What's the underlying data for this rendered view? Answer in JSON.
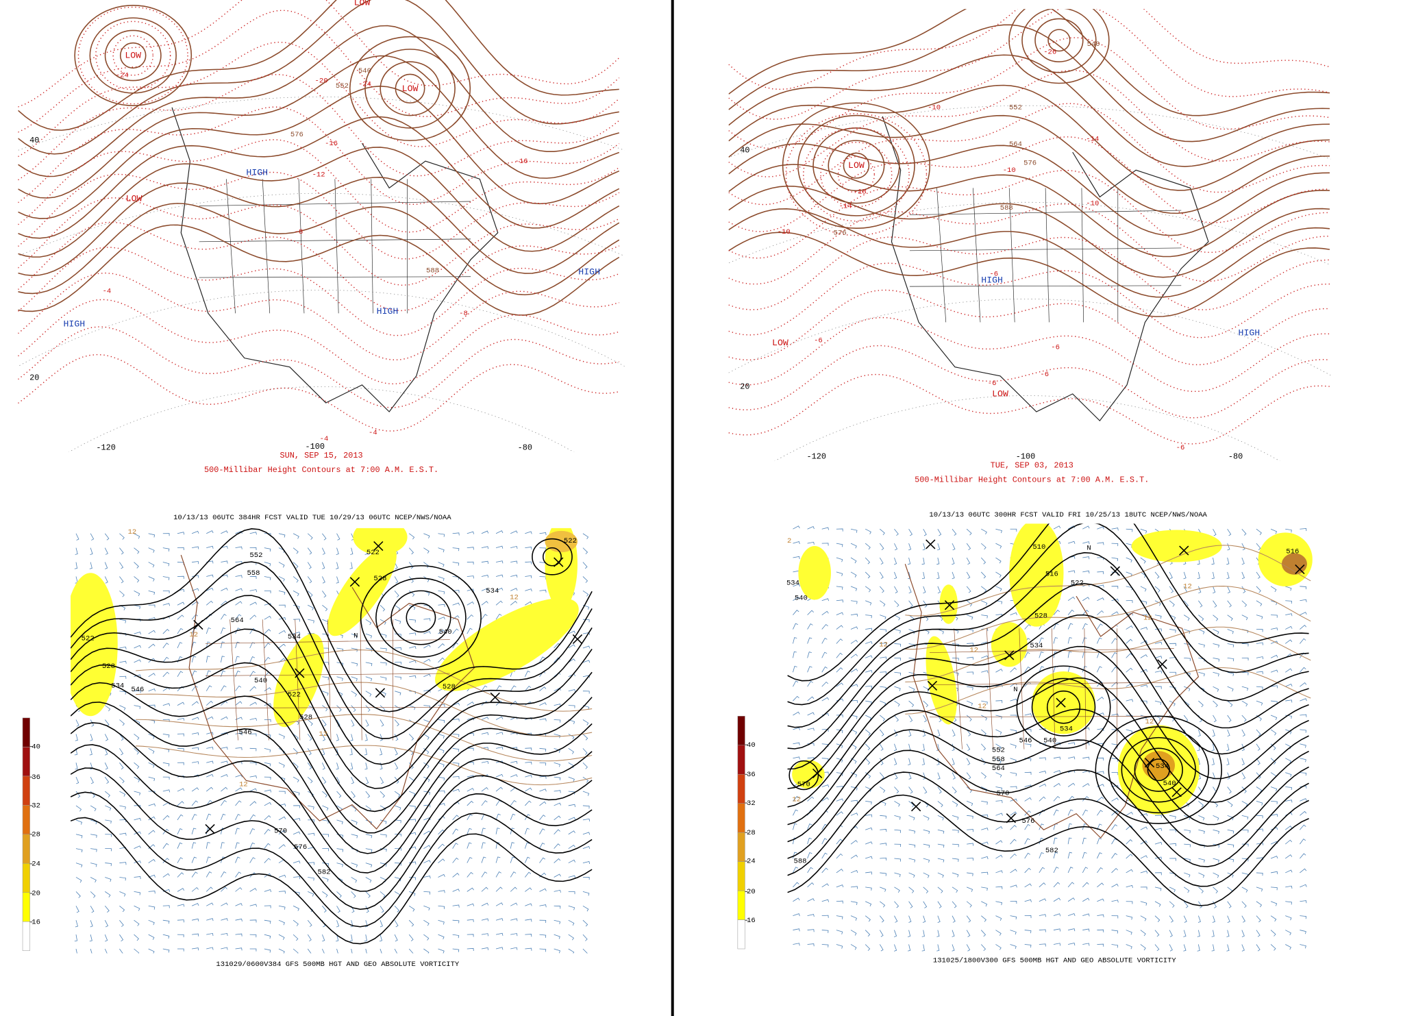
{
  "top_left": {
    "date": "SUN, SEP 15, 2013",
    "caption": "500-Millibar Height Contours at 7:00 A.M. E.S.T.",
    "lat_labels": [
      "40",
      "20"
    ],
    "lon_labels": [
      "-120",
      "-100",
      "-80"
    ],
    "systems": [
      "LOW",
      "LOW",
      "LOW",
      "LOW",
      "HIGH",
      "HIGH",
      "HIGH",
      "HIGH"
    ],
    "contour_labels": [
      "-24",
      "540",
      "552",
      "-24",
      "576",
      "-16",
      "-20",
      "-12",
      "-8",
      "-16",
      "-4",
      "-8",
      "588",
      "-4",
      "-4"
    ]
  },
  "top_right": {
    "date": "TUE, SEP 03, 2013",
    "caption": "500-Millibar Height Contours at 7:00 A.M. E.S.T.",
    "lat_labels": [
      "40",
      "20"
    ],
    "lon_labels": [
      "-120",
      "-100",
      "-80"
    ],
    "systems": [
      "LOW",
      "LOW",
      "LOW",
      "HIGH",
      "HIGH"
    ],
    "contour_labels": [
      "564",
      "552",
      "576",
      "-10",
      "-14",
      "-10",
      "-10",
      "588",
      "-10",
      "576",
      "-18",
      "-14",
      "-6",
      "-6",
      "-6",
      "-6",
      "-6",
      "-6",
      "540",
      "-26"
    ]
  },
  "bottom_left": {
    "header": "10/13/13 06UTC  384HR  FCST VALID TUE 10/29/13 06UTC  NCEP/NWS/NOAA",
    "footer": "131029/0600V384 GFS 500MB HGT AND GEO ABSOLUTE VORTICITY",
    "colorbar_ticks": [
      40,
      36,
      32,
      28,
      24,
      20,
      16
    ],
    "contour_labels": [
      "552",
      "558",
      "564",
      "534",
      "528",
      "522",
      "522",
      "534",
      "540",
      "528",
      "522",
      "528",
      "540",
      "546",
      "522",
      "528",
      "534",
      "546",
      "570",
      "576",
      "582",
      "12",
      "12",
      "12",
      "12",
      "12",
      "N"
    ]
  },
  "bottom_right": {
    "header": "10/13/13 06UTC  300HR  FCST VALID FRI 10/25/13 18UTC  NCEP/NWS/NOAA",
    "footer": "131025/1800V300 GFS 500MB HGT AND GEO ABSOLUTE VORTICITY",
    "colorbar_ticks": [
      40,
      36,
      32,
      28,
      24,
      20,
      16
    ],
    "contour_labels": [
      "510",
      "516",
      "522",
      "528",
      "534",
      "540",
      "534",
      "516",
      "534",
      "540",
      "546",
      "552",
      "558",
      "564",
      "570",
      "570",
      "576",
      "582",
      "588",
      "534",
      "540",
      "N",
      "N",
      "12",
      "12",
      "12",
      "12",
      "12",
      "12",
      "12",
      "2"
    ]
  }
}
